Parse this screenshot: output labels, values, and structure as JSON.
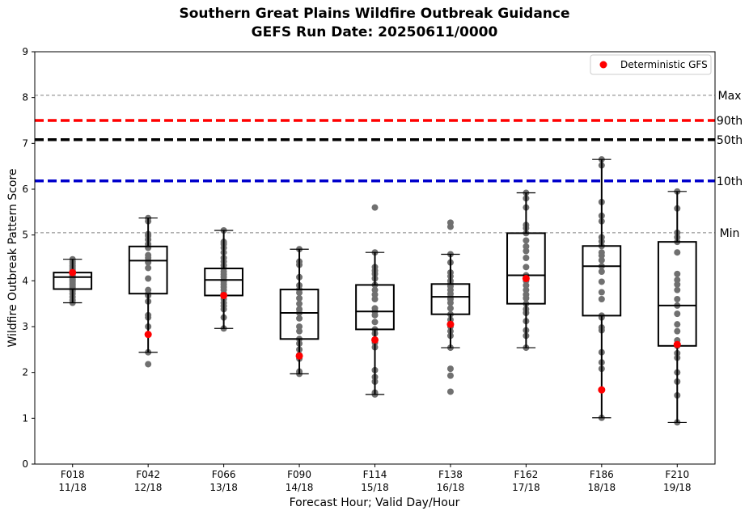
{
  "chart_data": {
    "type": "box",
    "title": "Southern Great Plains Wildfire Outbreak Guidance",
    "subtitle": "GEFS Run Date: 20250611/0000",
    "xlabel": "Forecast Hour; Valid Day/Hour",
    "ylabel": "Wildfire Outbreak Pattern Score",
    "ylim": [
      0,
      9
    ],
    "yticks": [
      0,
      1,
      2,
      3,
      4,
      5,
      6,
      7,
      8,
      9
    ],
    "grid": false,
    "legend": {
      "placement": "top-right",
      "entries": [
        {
          "label": "Deterministic GFS",
          "color": "#ff0000"
        }
      ]
    },
    "categories": [
      {
        "hour": "F018",
        "valid": "11/18"
      },
      {
        "hour": "F042",
        "valid": "12/18"
      },
      {
        "hour": "F066",
        "valid": "13/18"
      },
      {
        "hour": "F090",
        "valid": "14/18"
      },
      {
        "hour": "F114",
        "valid": "15/18"
      },
      {
        "hour": "F138",
        "valid": "16/18"
      },
      {
        "hour": "F162",
        "valid": "17/18"
      },
      {
        "hour": "F186",
        "valid": "18/18"
      },
      {
        "hour": "F210",
        "valid": "19/18"
      }
    ],
    "reference_lines": [
      {
        "label": "Max",
        "value": 8.05,
        "color": "#808080",
        "style": "dashed-thin"
      },
      {
        "label": "90th",
        "value": 7.5,
        "color": "#ff0000",
        "style": "dashed-thick"
      },
      {
        "label": "50th",
        "value": 7.08,
        "color": "#000000",
        "style": "dashed-thick"
      },
      {
        "label": "10th",
        "value": 6.18,
        "color": "#0000cc",
        "style": "dashed-thick"
      },
      {
        "label": "Min",
        "value": 5.05,
        "color": "#808080",
        "style": "dashed-thin"
      }
    ],
    "boxes": [
      {
        "whisker_low": 3.52,
        "q1": 3.82,
        "median": 4.08,
        "q3": 4.18,
        "whisker_high": 4.47
      },
      {
        "whisker_low": 2.44,
        "q1": 3.72,
        "median": 4.44,
        "q3": 4.75,
        "whisker_high": 5.37
      },
      {
        "whisker_low": 2.96,
        "q1": 3.68,
        "median": 4.02,
        "q3": 4.27,
        "whisker_high": 5.1
      },
      {
        "whisker_low": 1.97,
        "q1": 2.73,
        "median": 3.3,
        "q3": 3.81,
        "whisker_high": 4.69
      },
      {
        "whisker_low": 1.52,
        "q1": 2.94,
        "median": 3.33,
        "q3": 3.91,
        "whisker_high": 4.62
      },
      {
        "whisker_low": 2.54,
        "q1": 3.27,
        "median": 3.65,
        "q3": 3.93,
        "whisker_high": 4.58
      },
      {
        "whisker_low": 2.54,
        "q1": 3.5,
        "median": 4.12,
        "q3": 5.04,
        "whisker_high": 5.92
      },
      {
        "whisker_low": 1.01,
        "q1": 3.24,
        "median": 4.32,
        "q3": 4.76,
        "whisker_high": 6.65
      },
      {
        "whisker_low": 0.91,
        "q1": 2.58,
        "median": 3.46,
        "q3": 4.85,
        "whisker_high": 5.95
      }
    ],
    "members": [
      [
        3.52,
        3.58,
        3.65,
        3.72,
        3.78,
        3.82,
        3.86,
        3.9,
        3.93,
        3.97,
        4.0,
        4.03,
        4.06,
        4.08,
        4.1,
        4.12,
        4.15,
        4.18,
        4.22,
        4.26,
        4.3,
        4.34,
        4.38,
        4.42,
        4.47
      ],
      [
        2.18,
        2.44,
        3.0,
        3.2,
        3.25,
        3.55,
        3.68,
        3.72,
        3.8,
        4.05,
        4.28,
        4.4,
        4.44,
        4.5,
        4.56,
        4.72,
        4.8,
        4.9,
        4.98,
        5.02,
        5.3,
        5.37
      ],
      [
        2.96,
        3.2,
        3.38,
        3.45,
        3.52,
        3.6,
        3.68,
        3.72,
        3.8,
        3.86,
        3.92,
        3.98,
        4.02,
        4.08,
        4.14,
        4.2,
        4.27,
        4.34,
        4.42,
        4.5,
        4.62,
        4.72,
        4.8,
        4.85,
        5.1
      ],
      [
        1.97,
        2.02,
        2.3,
        2.38,
        2.5,
        2.63,
        2.73,
        2.9,
        3.0,
        3.18,
        3.3,
        3.38,
        3.5,
        3.62,
        3.74,
        3.81,
        3.9,
        4.08,
        4.35,
        4.42,
        4.69
      ],
      [
        1.52,
        1.56,
        1.8,
        1.9,
        2.05,
        2.55,
        2.65,
        2.85,
        2.94,
        3.1,
        3.25,
        3.33,
        3.4,
        3.6,
        3.7,
        3.8,
        3.91,
        4.05,
        4.15,
        4.22,
        4.3,
        4.62,
        5.6
      ],
      [
        1.58,
        1.93,
        2.08,
        2.54,
        2.8,
        2.9,
        3.0,
        3.15,
        3.27,
        3.4,
        3.52,
        3.6,
        3.65,
        3.72,
        3.8,
        3.88,
        3.93,
        4.0,
        4.1,
        4.18,
        4.4,
        4.58,
        5.18,
        5.27
      ],
      [
        2.54,
        2.8,
        2.92,
        3.12,
        3.3,
        3.38,
        3.5,
        3.62,
        3.7,
        3.8,
        3.9,
        4.0,
        4.12,
        4.3,
        4.5,
        4.65,
        4.75,
        4.88,
        5.04,
        5.15,
        5.22,
        5.6,
        5.8,
        5.92
      ],
      [
        1.01,
        2.08,
        2.22,
        2.44,
        2.92,
        2.98,
        3.2,
        3.24,
        3.6,
        3.75,
        3.98,
        4.2,
        4.32,
        4.45,
        4.55,
        4.62,
        4.76,
        4.86,
        4.95,
        5.3,
        5.42,
        5.72,
        6.52,
        6.65
      ],
      [
        0.91,
        1.5,
        1.8,
        2.0,
        2.32,
        2.42,
        2.58,
        2.7,
        2.9,
        3.05,
        3.28,
        3.46,
        3.6,
        3.8,
        3.92,
        4.02,
        4.15,
        4.62,
        4.85,
        4.95,
        5.05,
        5.58,
        5.95
      ]
    ],
    "deterministic": [
      4.18,
      2.83,
      3.68,
      2.36,
      2.71,
      3.05,
      4.05,
      1.62,
      2.61
    ],
    "colors": {
      "box": "#000000",
      "members": "#707070",
      "deterministic": "#ff0000"
    }
  }
}
